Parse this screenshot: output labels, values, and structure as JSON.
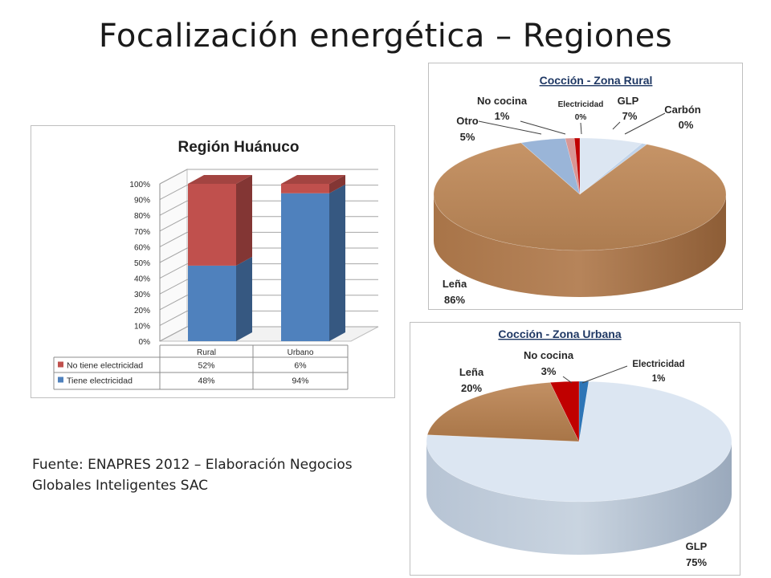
{
  "slide": {
    "title": "Focalización energética – Regiones",
    "source_line1": "Fuente: ENAPRES 2012 – Elaboración Negocios",
    "source_line2": "Globales Inteligentes SAC"
  },
  "colors": {
    "red": "#c0504d",
    "blue": "#4f81bd",
    "wood": "#b8875a",
    "light_blue": "#dce6f2",
    "pink": "#d99694",
    "dark_red": "#c00000",
    "accent_blue": "#4a7ebb"
  },
  "chart_data": [
    {
      "type": "bar",
      "stacked": true,
      "title": "Región  Huánuco",
      "categories": [
        "Rural",
        "Urbano"
      ],
      "ylim": [
        0,
        100
      ],
      "yticks": [
        "0%",
        "10%",
        "20%",
        "30%",
        "40%",
        "50%",
        "60%",
        "70%",
        "80%",
        "90%",
        "100%"
      ],
      "series": [
        {
          "name": "No tiene electricidad",
          "values": [
            52,
            6
          ],
          "labels": [
            "52%",
            "6%"
          ],
          "color": "#c0504d"
        },
        {
          "name": "Tiene electricidad",
          "values": [
            48,
            94
          ],
          "labels": [
            "48%",
            "94%"
          ],
          "color": "#4f81bd"
        }
      ],
      "data_table": true,
      "grid": true
    },
    {
      "type": "pie",
      "title": "Cocción - Zona Rural",
      "slices": [
        {
          "label": "GLP",
          "value": 7,
          "text": "7%"
        },
        {
          "label": "Carbón",
          "value": 0,
          "text": "0%"
        },
        {
          "label": "Leña",
          "value": 86,
          "text": "86%"
        },
        {
          "label": "Otro",
          "value": 5,
          "text": "5%"
        },
        {
          "label": "No cocina",
          "value": 1,
          "text": "1%"
        },
        {
          "label": "Electricidad",
          "value": 0,
          "text": "0%"
        }
      ]
    },
    {
      "type": "pie",
      "title": "Cocción - Zona Urbana",
      "slices": [
        {
          "label": "Electricidad",
          "value": 1,
          "text": "1%"
        },
        {
          "label": "GLP",
          "value": 75,
          "text": "75%"
        },
        {
          "label": "Leña",
          "value": 20,
          "text": "20%"
        },
        {
          "label": "No cocina",
          "value": 3,
          "text": "3%"
        }
      ]
    }
  ]
}
